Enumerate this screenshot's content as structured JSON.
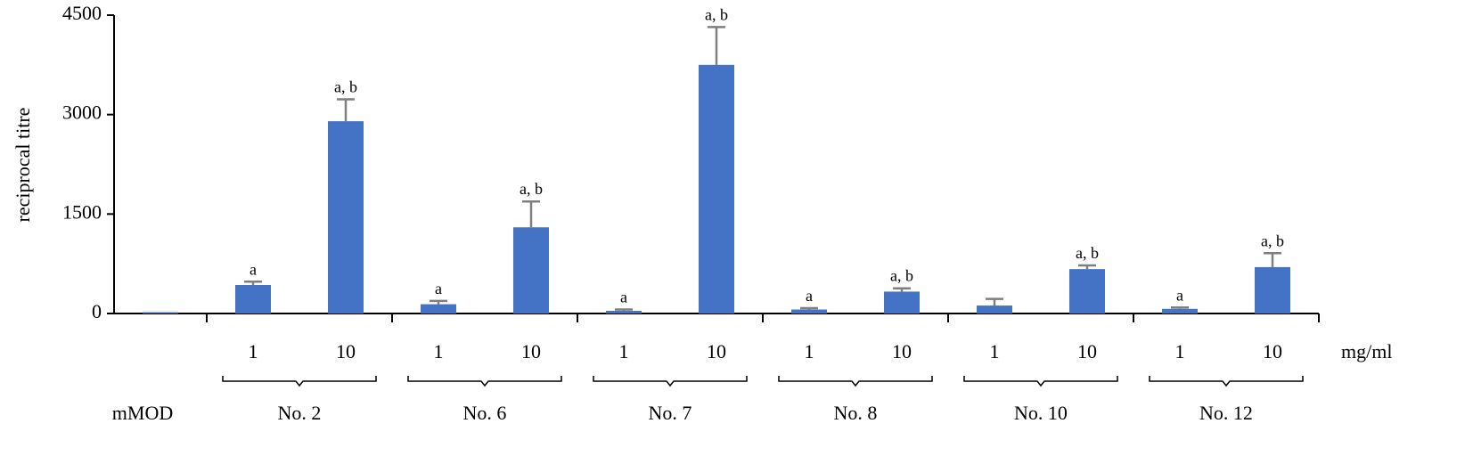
{
  "chart_data": {
    "type": "bar",
    "ylabel": "reciprocal titre",
    "x_unit": "mg/ml",
    "categories": [
      null,
      "1",
      "10",
      "1",
      "10",
      "1",
      "10",
      "1",
      "10",
      "1",
      "10",
      "1",
      "10"
    ],
    "groups": [
      {
        "label": "mMOD",
        "categories": 1
      },
      {
        "label": "No. 2",
        "categories": 2
      },
      {
        "label": "No. 6",
        "categories": 2
      },
      {
        "label": "No. 7",
        "categories": 2
      },
      {
        "label": "No. 8",
        "categories": 2
      },
      {
        "label": "No. 10",
        "categories": 2
      },
      {
        "label": "No. 12",
        "categories": 2
      }
    ],
    "values": [
      20,
      430,
      2900,
      140,
      1300,
      40,
      3750,
      60,
      330,
      120,
      670,
      70,
      700
    ],
    "errors": [
      null,
      50,
      330,
      50,
      390,
      20,
      570,
      20,
      50,
      100,
      55,
      20,
      210
    ],
    "annotations": [
      null,
      "a",
      "a, b",
      "a",
      "a, b",
      "a",
      "a, b",
      "a",
      "a, b",
      null,
      "a, b",
      "a",
      "a, b"
    ],
    "color": "#4472c4",
    "error_color": "#7f7f7f",
    "ylim": [
      0,
      4500
    ],
    "yticks": [
      0,
      1500,
      3000,
      4500
    ],
    "grid": false
  }
}
